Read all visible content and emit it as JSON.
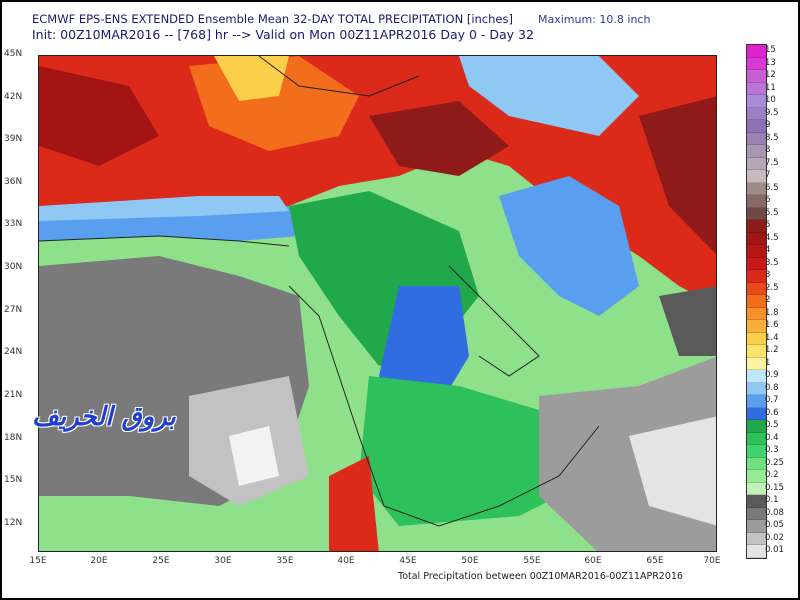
{
  "header": {
    "title_line1": "ECMWF EPS-ENS EXTENDED Ensemble Mean 32-DAY TOTAL PRECIPITATION [inches]",
    "title_line2": "Init: 00Z10MAR2016 -- [768] hr --> Valid on Mon 00Z11APR2016  Day 0 - Day 32",
    "maximum": "Maximum: 10.8 inch"
  },
  "footer": {
    "caption": "Total Precipitation between 00Z10MAR2016-00Z11APR2016"
  },
  "watermark": {
    "text": "بروق الخريف"
  },
  "map": {
    "lat_labels": [
      "45N",
      "42N",
      "39N",
      "36N",
      "33N",
      "30N",
      "27N",
      "24N",
      "21N",
      "18N",
      "15N",
      "12N"
    ],
    "lon_labels": [
      "15E",
      "20E",
      "25E",
      "30E",
      "35E",
      "40E",
      "45E",
      "50E",
      "55E",
      "60E",
      "65E",
      "70E"
    ]
  },
  "legend": {
    "levels": [
      "15",
      "13",
      "12",
      "11",
      "10",
      "9.5",
      "9",
      "8.5",
      "8",
      "7.5",
      "7",
      "6.5",
      "6",
      "5.5",
      "5",
      "4.5",
      "4",
      "3.5",
      "3",
      "2.5",
      "2",
      "1.8",
      "1.6",
      "1.4",
      "1.2",
      "1",
      "0.9",
      "0.8",
      "0.7",
      "0.6",
      "0.5",
      "0.4",
      "0.3",
      "0.25",
      "0.2",
      "0.15",
      "0.1",
      "0.08",
      "0.05",
      "0.02",
      "0.01"
    ],
    "colors": [
      "#e021d2",
      "#d63ad2",
      "#c95fd4",
      "#ba74d6",
      "#a98bd8",
      "#9b80c7",
      "#8f70b5",
      "#9a82b0",
      "#a996b3",
      "#b7a6b5",
      "#c7b9be",
      "#a08c86",
      "#876965",
      "#6f4a44",
      "#8e1a1a",
      "#a31515",
      "#b51515",
      "#c81818",
      "#dc2a1a",
      "#ea4a1a",
      "#f26d1c",
      "#f5902a",
      "#f8b03a",
      "#fbcf4a",
      "#fde36a",
      "#fef3a0",
      "#bfe7ff",
      "#8ec8f3",
      "#5a9ef0",
      "#2f6de0",
      "#21a84a",
      "#2ec05a",
      "#3fd470",
      "#6fe07e",
      "#99ea96",
      "#c2f2b8",
      "#5a5a5a",
      "#7a7a7a",
      "#9c9c9c",
      "#c2c2c2",
      "#e4e4e4"
    ]
  }
}
